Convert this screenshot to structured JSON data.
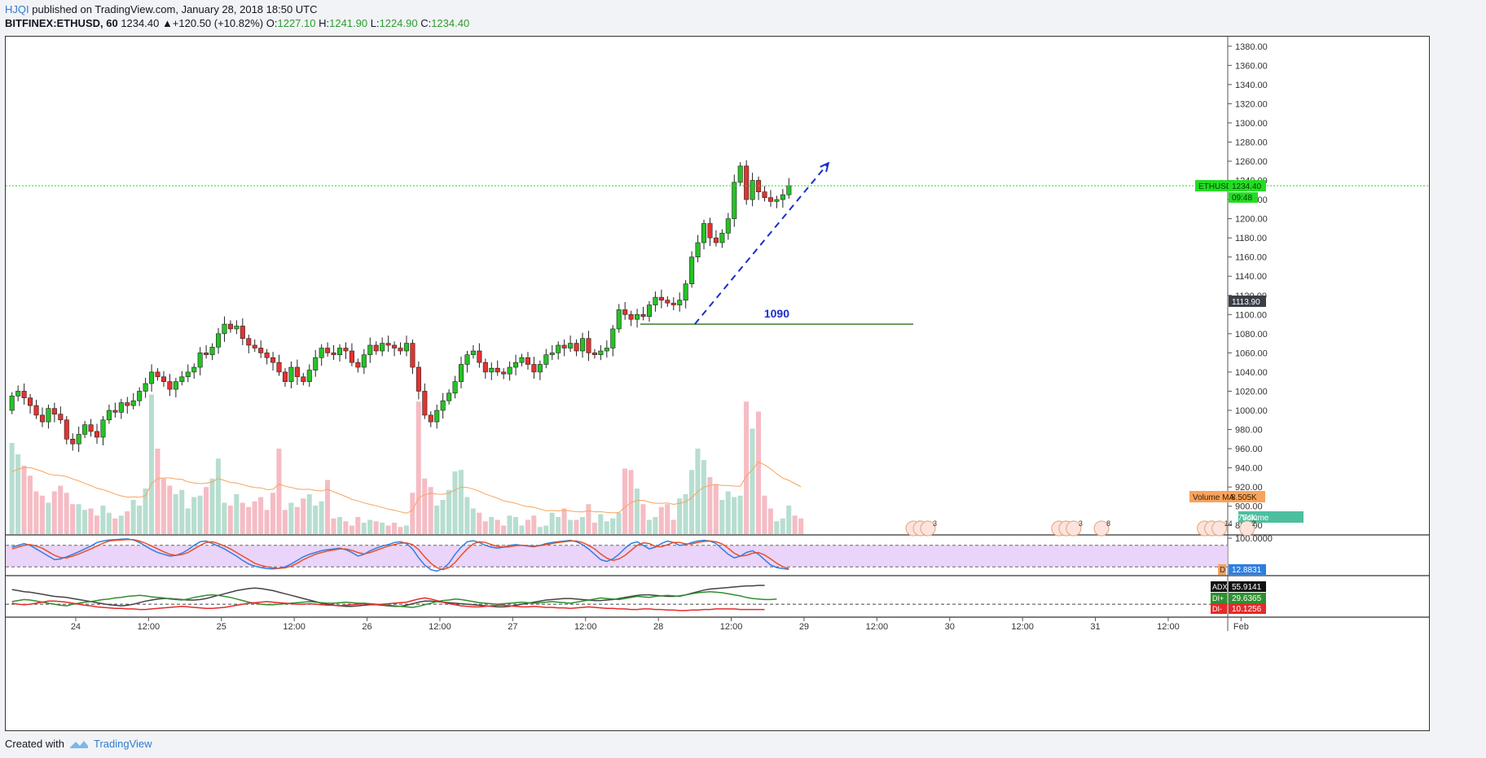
{
  "header": {
    "author": "HJQI",
    "published": "published on TradingView.com, January 28, 2018 18:50 UTC",
    "symbol": "BITFINEX:ETHUSD, 60",
    "last": "1234.40",
    "change": "▲+120.50 (+10.82%)",
    "o_label": "O:",
    "o": "1227.10",
    "h_label": "H:",
    "h": "1241.90",
    "l_label": "L:",
    "l": "1224.90",
    "c_label": "C:",
    "c": "1234.40"
  },
  "footer": {
    "created_with": "Created with",
    "brand": "TradingView"
  },
  "colors": {
    "up": "#26c226",
    "down": "#e5322f",
    "volume_up": "#b7ded0",
    "volume_down": "#f5bcc4",
    "volume_ma": "#f7a35c",
    "last_price": "#22dd22",
    "annotation": "#1a2ecf",
    "support": "#3f7f2f",
    "stoch_k": "#2f7fdf",
    "stoch_d": "#e8502c",
    "stoch_band": "#e3c6f7",
    "adx": "#444444",
    "di_plus": "#2f8f2f",
    "di_minus": "#e52b2b"
  },
  "chart_data": {
    "type": "candlestick",
    "title": "BITFINEX:ETHUSD, 60",
    "ylim": [
      870,
      1390
    ],
    "y_ticks": [
      880,
      900,
      920,
      940,
      960,
      980,
      1000,
      1020,
      1040,
      1060,
      1080,
      1100,
      1120,
      1140,
      1160,
      1180,
      1200,
      1220,
      1240,
      1260,
      1280,
      1300,
      1320,
      1340,
      1360,
      1380
    ],
    "y_tick_labels": [
      "880.00",
      "900.00",
      "920.00",
      "940.00",
      "960.00",
      "980.00",
      "1000.00",
      "1020.00",
      "1040.00",
      "1060.00",
      "1080.00",
      "1100.00",
      "1120.00",
      "1140.00",
      "1160.00",
      "1180.00",
      "1200.00",
      "1220.00",
      "1240.00",
      "1260.00",
      "1280.00",
      "1300.00",
      "1320.00",
      "1340.00",
      "1360.00",
      "1380.00"
    ],
    "x_ticks": [
      {
        "label": "24",
        "bar": 11
      },
      {
        "label": "12:00",
        "bar": 23
      },
      {
        "label": "25",
        "bar": 35
      },
      {
        "label": "12:00",
        "bar": 47
      },
      {
        "label": "26",
        "bar": 59
      },
      {
        "label": "12:00",
        "bar": 71
      },
      {
        "label": "27",
        "bar": 83
      },
      {
        "label": "12:00",
        "bar": 95
      },
      {
        "label": "28",
        "bar": 107
      },
      {
        "label": "12:00",
        "bar": 119
      },
      {
        "label": "29",
        "bar": 131
      },
      {
        "label": "12:00",
        "bar": 143
      },
      {
        "label": "30",
        "bar": 155
      },
      {
        "label": "12:00",
        "bar": 167
      },
      {
        "label": "31",
        "bar": 179
      },
      {
        "label": "12:00",
        "bar": 191
      },
      {
        "label": "Feb",
        "bar": 203
      }
    ],
    "series": [
      {
        "name": "ETHUSD",
        "close": [
          1015,
          1020,
          1013,
          1005,
          995,
          988,
          1002,
          996,
          990,
          970,
          965,
          975,
          985,
          978,
          972,
          990,
          1000,
          998,
          1008,
          1005,
          1010,
          1020,
          1028,
          1040,
          1035,
          1030,
          1022,
          1030,
          1035,
          1040,
          1045,
          1060,
          1058,
          1066,
          1080,
          1090,
          1085,
          1088,
          1075,
          1068,
          1065,
          1060,
          1055,
          1050,
          1040,
          1030,
          1045,
          1035,
          1030,
          1042,
          1055,
          1065,
          1060,
          1058,
          1065,
          1062,
          1050,
          1045,
          1058,
          1068,
          1062,
          1070,
          1068,
          1065,
          1062,
          1070,
          1045,
          1020,
          995,
          988,
          1000,
          1010,
          1018,
          1030,
          1048,
          1058,
          1062,
          1050,
          1040,
          1044,
          1040,
          1038,
          1045,
          1050,
          1055,
          1048,
          1040,
          1048,
          1058,
          1060,
          1068,
          1065,
          1070,
          1062,
          1075,
          1060,
          1058,
          1062,
          1065,
          1085,
          1105,
          1100,
          1095,
          1100,
          1098,
          1110,
          1118,
          1115,
          1112,
          1110,
          1115,
          1132,
          1160,
          1175,
          1195,
          1180,
          1175,
          1185,
          1200,
          1238,
          1255,
          1220,
          1240,
          1228,
          1222,
          1218,
          1220,
          1225,
          1234.4
        ]
      }
    ],
    "open_first": 1000,
    "volume": [
      0.64,
      0.56,
      0.48,
      0.41,
      0.3,
      0.27,
      0.22,
      0.3,
      0.34,
      0.29,
      0.21,
      0.21,
      0.17,
      0.18,
      0.13,
      0.2,
      0.15,
      0.11,
      0.13,
      0.16,
      0.24,
      0.2,
      0.32,
      0.98,
      0.6,
      0.39,
      0.34,
      0.28,
      0.31,
      0.18,
      0.26,
      0.27,
      0.33,
      0.39,
      0.53,
      0.22,
      0.2,
      0.28,
      0.22,
      0.19,
      0.23,
      0.26,
      0.17,
      0.29,
      0.6,
      0.17,
      0.22,
      0.19,
      0.25,
      0.28,
      0.2,
      0.23,
      0.38,
      0.11,
      0.12,
      0.09,
      0.06,
      0.12,
      0.08,
      0.1,
      0.09,
      0.08,
      0.06,
      0.08,
      0.05,
      0.06,
      0.29,
      0.93,
      0.39,
      0.33,
      0.2,
      0.24,
      0.31,
      0.44,
      0.45,
      0.26,
      0.18,
      0.15,
      0.09,
      0.12,
      0.1,
      0.06,
      0.13,
      0.12,
      0.06,
      0.1,
      0.13,
      0.05,
      0.06,
      0.15,
      0.12,
      0.18,
      0.1,
      0.1,
      0.12,
      0.21,
      0.08,
      0.14,
      0.09,
      0.11,
      0.15,
      0.46,
      0.45,
      0.32,
      0.21,
      0.1,
      0.12,
      0.19,
      0.21,
      0.1,
      0.25,
      0.28,
      0.45,
      0.6,
      0.52,
      0.4,
      0.35,
      0.24,
      0.3,
      0.26,
      0.27,
      0.93,
      0.74,
      0.86,
      0.27,
      0.18,
      0.09,
      0.11,
      0.2,
      0.13,
      0.11
    ],
    "volume_ma_label": "Volume MA",
    "volume_ma_value": "8.505K",
    "volume_label": "Volume",
    "volume_value": "4.754K",
    "last_price": {
      "name": "ETHUSD",
      "value": 1234.4,
      "label": "1234.40",
      "countdown": "09:48"
    },
    "price_marker": {
      "value": 1113.9,
      "label": "1113.90"
    },
    "support_level": {
      "value": 1090,
      "label": "1090",
      "from_bar": 104,
      "to_bar": 149
    },
    "arrow": {
      "from_bar": 113,
      "from_value": 1090,
      "to_bar": 135,
      "to_value": 1258
    },
    "events": [
      {
        "bar": 149,
        "labels": [
          "7",
          "3",
          "3"
        ]
      },
      {
        "bar": 173,
        "labels": [
          "2",
          "3",
          "3"
        ]
      },
      {
        "bar": 180,
        "labels": [
          "8"
        ]
      },
      {
        "bar": 197,
        "labels": [
          "5",
          "4",
          "14"
        ]
      },
      {
        "bar": 204,
        "labels": [
          "2"
        ]
      }
    ],
    "stochastic": {
      "ylim": [
        0,
        100
      ],
      "band": [
        20,
        80
      ],
      "ticks": [
        100
      ],
      "tick_labels": [
        "100.0000"
      ],
      "d_label": "D",
      "value": "12.8831",
      "k": [
        75,
        80,
        85,
        80,
        70,
        60,
        50,
        40,
        42,
        48,
        55,
        62,
        70,
        78,
        88,
        92,
        95,
        96,
        97,
        98,
        95,
        88,
        78,
        68,
        60,
        55,
        50,
        52,
        58,
        68,
        80,
        90,
        92,
        85,
        78,
        70,
        60,
        50,
        38,
        28,
        22,
        18,
        15,
        14,
        16,
        20,
        28,
        38,
        48,
        55,
        60,
        65,
        68,
        70,
        72,
        68,
        60,
        50,
        55,
        65,
        72,
        78,
        82,
        88,
        90,
        85,
        70,
        45,
        25,
        12,
        8,
        15,
        30,
        55,
        75,
        90,
        93,
        88,
        80,
        75,
        72,
        75,
        80,
        82,
        80,
        78,
        76,
        80,
        85,
        88,
        90,
        92,
        94,
        90,
        82,
        70,
        55,
        40,
        35,
        42,
        55,
        72,
        85,
        90,
        80,
        70,
        75,
        85,
        92,
        88,
        80,
        82,
        88,
        92,
        94,
        92,
        85,
        70,
        55,
        45,
        50,
        60,
        65,
        55,
        40,
        25,
        18,
        15,
        13
      ],
      "d": [
        70,
        75,
        80,
        82,
        78,
        72,
        62,
        52,
        46,
        45,
        50,
        56,
        63,
        70,
        78,
        86,
        92,
        94,
        95,
        96,
        96,
        92,
        86,
        78,
        70,
        62,
        55,
        52,
        54,
        60,
        70,
        80,
        88,
        90,
        85,
        78,
        70,
        60,
        50,
        40,
        30,
        24,
        20,
        17,
        16,
        17,
        22,
        30,
        40,
        48,
        55,
        60,
        64,
        67,
        70,
        70,
        66,
        60,
        56,
        60,
        66,
        72,
        78,
        82,
        86,
        87,
        82,
        68,
        48,
        30,
        18,
        12,
        18,
        32,
        52,
        70,
        84,
        90,
        88,
        82,
        77,
        75,
        76,
        79,
        80,
        79,
        78,
        79,
        82,
        85,
        88,
        90,
        92,
        92,
        88,
        80,
        70,
        56,
        44,
        38,
        42,
        52,
        66,
        80,
        87,
        85,
        77,
        76,
        82,
        88,
        88,
        84,
        84,
        88,
        91,
        92,
        90,
        84,
        72,
        58,
        50,
        52,
        58,
        60,
        53,
        42,
        30,
        20,
        15
      ]
    },
    "dmi": {
      "ylim": [
        0,
        70
      ],
      "ref": 20,
      "adx_label": "ADX",
      "adx_value": "55.9141",
      "di_plus_label": "DI+",
      "di_plus_value": "29.6365",
      "di_minus_label": "DI-",
      "di_minus_value": "10.1256",
      "adx": [
        48,
        46,
        44,
        43,
        41,
        39,
        37,
        35,
        34,
        33,
        31,
        29,
        27,
        25,
        23,
        21,
        19,
        18,
        17,
        18,
        20,
        23,
        26,
        28,
        30,
        31,
        31,
        30,
        29,
        28,
        28,
        29,
        31,
        34,
        37,
        40,
        43,
        46,
        48,
        50,
        51,
        50,
        48,
        46,
        43,
        40,
        37,
        34,
        31,
        28,
        25,
        22,
        20,
        18,
        17,
        16,
        16,
        17,
        18,
        19,
        19,
        18,
        17,
        16,
        16,
        18,
        21,
        24,
        26,
        26,
        25,
        24,
        23,
        22,
        21,
        20,
        19,
        18,
        17,
        16,
        15,
        15,
        16,
        18,
        20,
        22,
        24,
        26,
        28,
        29,
        30,
        31,
        31,
        30,
        29,
        28,
        27,
        27,
        28,
        29,
        31,
        33,
        35,
        37,
        38,
        38,
        37,
        36,
        35,
        35,
        36,
        38,
        41,
        44,
        47,
        49,
        50,
        51,
        52,
        53,
        54,
        55,
        55,
        56,
        56
      ],
      "di_plus": [
        25,
        27,
        29,
        28,
        26,
        24,
        22,
        20,
        18,
        17,
        20,
        22,
        24,
        25,
        27,
        29,
        30,
        32,
        33,
        35,
        36,
        37,
        36,
        34,
        33,
        32,
        30,
        29,
        28,
        30,
        33,
        35,
        37,
        38,
        37,
        35,
        33,
        30,
        27,
        24,
        22,
        20,
        19,
        19,
        20,
        21,
        22,
        23,
        24,
        25,
        24,
        23,
        22,
        22,
        23,
        24,
        23,
        22,
        22,
        21,
        20,
        19,
        18,
        17,
        16,
        15,
        14,
        16,
        19,
        22,
        25,
        27,
        28,
        30,
        29,
        27,
        25,
        23,
        22,
        21,
        20,
        21,
        22,
        23,
        24,
        23,
        22,
        23,
        24,
        25,
        24,
        23,
        22,
        24,
        26,
        28,
        30,
        32,
        31,
        30,
        29,
        31,
        33,
        35,
        34,
        33,
        35,
        36,
        37,
        36,
        35,
        38,
        40,
        42,
        43,
        44,
        43,
        42,
        40,
        38,
        36,
        33,
        31,
        30,
        29,
        29,
        30
      ],
      "di_minus": [
        22,
        20,
        19,
        20,
        22,
        24,
        26,
        26,
        25,
        24,
        22,
        20,
        18,
        17,
        15,
        14,
        13,
        12,
        12,
        11,
        11,
        10,
        10,
        11,
        12,
        13,
        14,
        15,
        16,
        15,
        14,
        13,
        12,
        12,
        13,
        14,
        16,
        18,
        20,
        22,
        23,
        24,
        25,
        24,
        23,
        22,
        21,
        20,
        20,
        21,
        20,
        19,
        18,
        18,
        17,
        18,
        19,
        20,
        21,
        20,
        19,
        20,
        21,
        22,
        23,
        24,
        27,
        30,
        32,
        30,
        27,
        24,
        21,
        19,
        17,
        16,
        15,
        15,
        16,
        17,
        18,
        18,
        17,
        16,
        15,
        15,
        16,
        15,
        14,
        14,
        13,
        13,
        12,
        13,
        14,
        15,
        14,
        13,
        12,
        12,
        11,
        11,
        10,
        10,
        11,
        11,
        10,
        10,
        9,
        9,
        8,
        8,
        9,
        9,
        10,
        10,
        11,
        11,
        11,
        11,
        10,
        10,
        10,
        10,
        10
      ]
    }
  }
}
